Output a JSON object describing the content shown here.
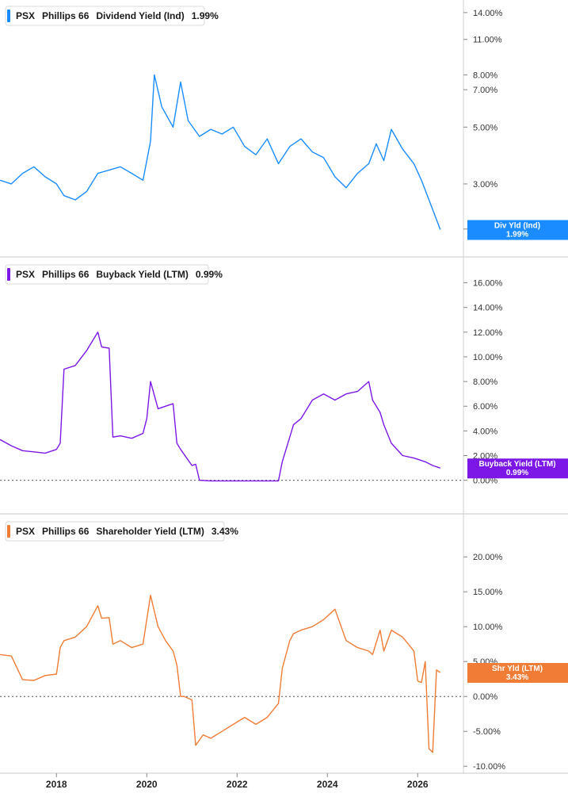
{
  "chart_data": [
    {
      "type": "line",
      "ticker": "PSX",
      "company": "Phillips 66",
      "metric": "Dividend Yield (Ind)",
      "last_value": "1.99%",
      "color": "#1a8cff",
      "scale": "log",
      "ylim": [
        1.9,
        14.6
      ],
      "yticks": [
        {
          "v": 14,
          "label": "14.00%"
        },
        {
          "v": 11,
          "label": "11.00%"
        },
        {
          "v": 8,
          "label": "8.00%"
        },
        {
          "v": 7,
          "label": "7.00%"
        },
        {
          "v": 5,
          "label": "5.00%"
        },
        {
          "v": 3,
          "label": "3.00%"
        },
        {
          "v": 2,
          "label": "2.00%"
        }
      ],
      "badge": {
        "label": "Div Yld (Ind)",
        "value": "1.99%"
      },
      "zero_line": false,
      "series": [
        {
          "x": [
            "2016-10",
            "2017-01",
            "2017-04",
            "2017-07",
            "2017-10",
            "2018-01",
            "2018-03",
            "2018-06",
            "2018-09",
            "2018-12",
            "2019-03",
            "2019-06",
            "2019-09",
            "2019-12",
            "2020-02",
            "2020-03",
            "2020-05",
            "2020-08",
            "2020-10",
            "2020-12",
            "2021-03",
            "2021-06",
            "2021-09",
            "2021-12",
            "2022-03",
            "2022-06",
            "2022-09",
            "2022-12",
            "2023-03",
            "2023-06",
            "2023-09",
            "2023-12",
            "2024-03",
            "2024-06",
            "2024-09",
            "2024-12",
            "2025-02",
            "2025-04",
            "2025-06",
            "2025-09",
            "2025-12",
            "2026-02",
            "2026-04",
            "2026-07"
          ],
          "values": [
            3.1,
            3.0,
            3.3,
            3.5,
            3.2,
            3.0,
            2.7,
            2.6,
            2.8,
            3.3,
            3.4,
            3.5,
            3.3,
            3.1,
            4.4,
            8.0,
            6.0,
            5.0,
            7.5,
            5.3,
            4.6,
            4.9,
            4.7,
            5.0,
            4.2,
            3.9,
            4.5,
            3.6,
            4.2,
            4.5,
            4.0,
            3.8,
            3.2,
            2.9,
            3.3,
            3.6,
            4.3,
            3.7,
            4.9,
            4.1,
            3.6,
            3.1,
            2.6,
            1.99
          ]
        }
      ]
    },
    {
      "type": "line",
      "ticker": "PSX",
      "company": "Phillips 66",
      "metric": "Buyback Yield (LTM)",
      "last_value": "0.99%",
      "color": "#7c17e8",
      "scale": "linear",
      "ylim": [
        -1.5,
        17
      ],
      "yticks": [
        {
          "v": 16,
          "label": "16.00%"
        },
        {
          "v": 14,
          "label": "14.00%"
        },
        {
          "v": 12,
          "label": "12.00%"
        },
        {
          "v": 10,
          "label": "10.00%"
        },
        {
          "v": 8,
          "label": "8.00%"
        },
        {
          "v": 6,
          "label": "6.00%"
        },
        {
          "v": 4,
          "label": "4.00%"
        },
        {
          "v": 2,
          "label": "2.00%"
        },
        {
          "v": 0,
          "label": "0.00%"
        }
      ],
      "badge": {
        "label": "Buyback Yield (LTM)",
        "value": "0.99%"
      },
      "zero_line": true,
      "series": [
        {
          "x": [
            "2016-10",
            "2017-01",
            "2017-04",
            "2017-07",
            "2017-10",
            "2018-01",
            "2018-02",
            "2018-03",
            "2018-06",
            "2018-09",
            "2018-12",
            "2019-01",
            "2019-03",
            "2019-04",
            "2019-06",
            "2019-09",
            "2019-12",
            "2020-01",
            "2020-02",
            "2020-04",
            "2020-06",
            "2020-08",
            "2020-09",
            "2020-10",
            "2021-01",
            "2021-02",
            "2021-03",
            "2021-06",
            "2021-09",
            "2021-12",
            "2022-03",
            "2022-06",
            "2022-09",
            "2022-12",
            "2023-01",
            "2023-03",
            "2023-04",
            "2023-06",
            "2023-09",
            "2023-12",
            "2024-03",
            "2024-06",
            "2024-09",
            "2024-12",
            "2025-01",
            "2025-03",
            "2025-04",
            "2025-06",
            "2025-09",
            "2025-12",
            "2026-03",
            "2026-05",
            "2026-07"
          ],
          "values": [
            3.3,
            2.8,
            2.4,
            2.3,
            2.2,
            2.5,
            3.0,
            9.0,
            9.3,
            10.5,
            12.0,
            10.8,
            10.7,
            3.5,
            3.6,
            3.4,
            3.8,
            5.0,
            8.0,
            5.8,
            6.0,
            6.2,
            3.0,
            2.5,
            1.2,
            1.3,
            0.0,
            -0.05,
            -0.05,
            -0.05,
            -0.05,
            -0.05,
            -0.05,
            -0.05,
            1.5,
            3.5,
            4.5,
            5.0,
            6.5,
            7.0,
            6.5,
            7.0,
            7.2,
            8.0,
            6.5,
            5.5,
            4.5,
            3.0,
            2.0,
            1.8,
            1.5,
            1.2,
            0.99
          ]
        }
      ]
    },
    {
      "type": "line",
      "ticker": "PSX",
      "company": "Phillips 66",
      "metric": "Shareholder Yield (LTM)",
      "last_value": "3.43%",
      "color": "#f07c35",
      "scale": "linear",
      "ylim": [
        -11,
        24
      ],
      "yticks": [
        {
          "v": 20,
          "label": "20.00%"
        },
        {
          "v": 15,
          "label": "15.00%"
        },
        {
          "v": 10,
          "label": "10.00%"
        },
        {
          "v": 5,
          "label": "5.00%"
        },
        {
          "v": 0,
          "label": "0.00%"
        },
        {
          "v": -5,
          "label": "-5.00%"
        },
        {
          "v": -10,
          "label": "-10.00%"
        }
      ],
      "badge": {
        "label": "Shr Yld (LTM)",
        "value": "3.43%"
      },
      "zero_line": true,
      "series": [
        {
          "x": [
            "2016-10",
            "2017-01",
            "2017-04",
            "2017-07",
            "2017-10",
            "2018-01",
            "2018-02",
            "2018-03",
            "2018-06",
            "2018-09",
            "2018-12",
            "2019-01",
            "2019-03",
            "2019-04",
            "2019-06",
            "2019-09",
            "2019-12",
            "2020-02",
            "2020-04",
            "2020-06",
            "2020-08",
            "2020-09",
            "2020-10",
            "2020-11",
            "2021-01",
            "2021-02",
            "2021-04",
            "2021-06",
            "2021-09",
            "2021-12",
            "2022-03",
            "2022-06",
            "2022-09",
            "2022-12",
            "2023-01",
            "2023-03",
            "2023-04",
            "2023-06",
            "2023-09",
            "2023-12",
            "2024-03",
            "2024-06",
            "2024-09",
            "2024-12",
            "2025-01",
            "2025-03",
            "2025-04",
            "2025-06",
            "2025-09",
            "2025-12",
            "2026-01",
            "2026-02",
            "2026-03",
            "2026-04",
            "2026-05",
            "2026-06",
            "2026-07"
          ],
          "values": [
            6.0,
            5.8,
            2.4,
            2.3,
            3.0,
            3.2,
            7.0,
            8.0,
            8.5,
            10.0,
            13.0,
            11.2,
            11.3,
            7.5,
            8.0,
            7.0,
            7.5,
            14.5,
            10.0,
            8.0,
            6.5,
            4.5,
            0.0,
            0.0,
            -0.5,
            -7.0,
            -5.5,
            -6.0,
            -5.0,
            -4.0,
            -3.0,
            -4.0,
            -3.0,
            -1.0,
            4.0,
            8.0,
            9.0,
            9.5,
            10.0,
            11.0,
            12.5,
            8.0,
            7.0,
            6.5,
            6.0,
            9.5,
            6.5,
            9.5,
            8.5,
            6.5,
            2.2,
            2.0,
            5.0,
            -7.5,
            -8.0,
            3.8,
            3.43
          ]
        }
      ]
    }
  ],
  "x_axis": {
    "ticks": [
      {
        "date": "2018-01",
        "label": "2018"
      },
      {
        "date": "2020-01",
        "label": "2020"
      },
      {
        "date": "2022-01",
        "label": "2022"
      },
      {
        "date": "2024-01",
        "label": "2024"
      },
      {
        "date": "2026-01",
        "label": "2026"
      }
    ]
  }
}
